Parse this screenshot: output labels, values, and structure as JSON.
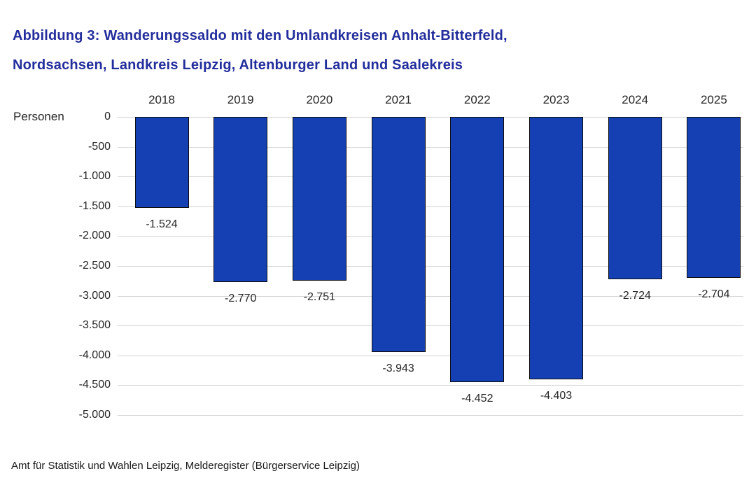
{
  "header": {
    "title_lines": [
      "Abbildung 3: Wanderungssaldo mit den Umlandkreisen Anhalt-Bitterfeld,",
      "Nordsachsen, Landkreis Leipzig, Altenburger Land und Saalekreis"
    ]
  },
  "chart_data": {
    "type": "bar",
    "title": "Abbildung 3: Wanderungssaldo mit den Umlandkreisen Anhalt-Bitterfeld, Nordsachsen, Landkreis Leipzig, Altenburger Land und Saalekreis",
    "xlabel": "",
    "ylabel": "Personen",
    "categories": [
      "2018",
      "2019",
      "2020",
      "2021",
      "2022",
      "2023",
      "2024",
      "2025"
    ],
    "values": [
      -1524,
      -2770,
      -2751,
      -3943,
      -4452,
      -4403,
      -2724,
      -2704
    ],
    "value_labels": [
      "-1.524",
      "-2.770",
      "-2.751",
      "-3.943",
      "-4.452",
      "-4.403",
      "-2.724",
      "-2.704"
    ],
    "ylim": [
      -5000,
      0
    ],
    "y_ticks": [
      {
        "value": 0,
        "label": "0"
      },
      {
        "value": -500,
        "label": "-500"
      },
      {
        "value": -1000,
        "label": "-1.000"
      },
      {
        "value": -1500,
        "label": "-1.500"
      },
      {
        "value": -2000,
        "label": "-2.000"
      },
      {
        "value": -2500,
        "label": "-2.500"
      },
      {
        "value": -3000,
        "label": "-3.000"
      },
      {
        "value": -3500,
        "label": "-3.500"
      },
      {
        "value": -4000,
        "label": "-4.000"
      },
      {
        "value": -4500,
        "label": "-4.500"
      },
      {
        "value": -5000,
        "label": "-5.000"
      }
    ],
    "grid": true,
    "legend_position": "none",
    "bar_color": "#1440B4",
    "bar_border_color": "#0d0d0d"
  },
  "footer": {
    "source": "Amt für Statistik und Wahlen Leipzig, Melderegister (Bürgerservice Leipzig)"
  },
  "colors": {
    "title": "#232D9C",
    "text": "#262626",
    "gridline": "#d4d4d4",
    "background": "#ffffff"
  }
}
